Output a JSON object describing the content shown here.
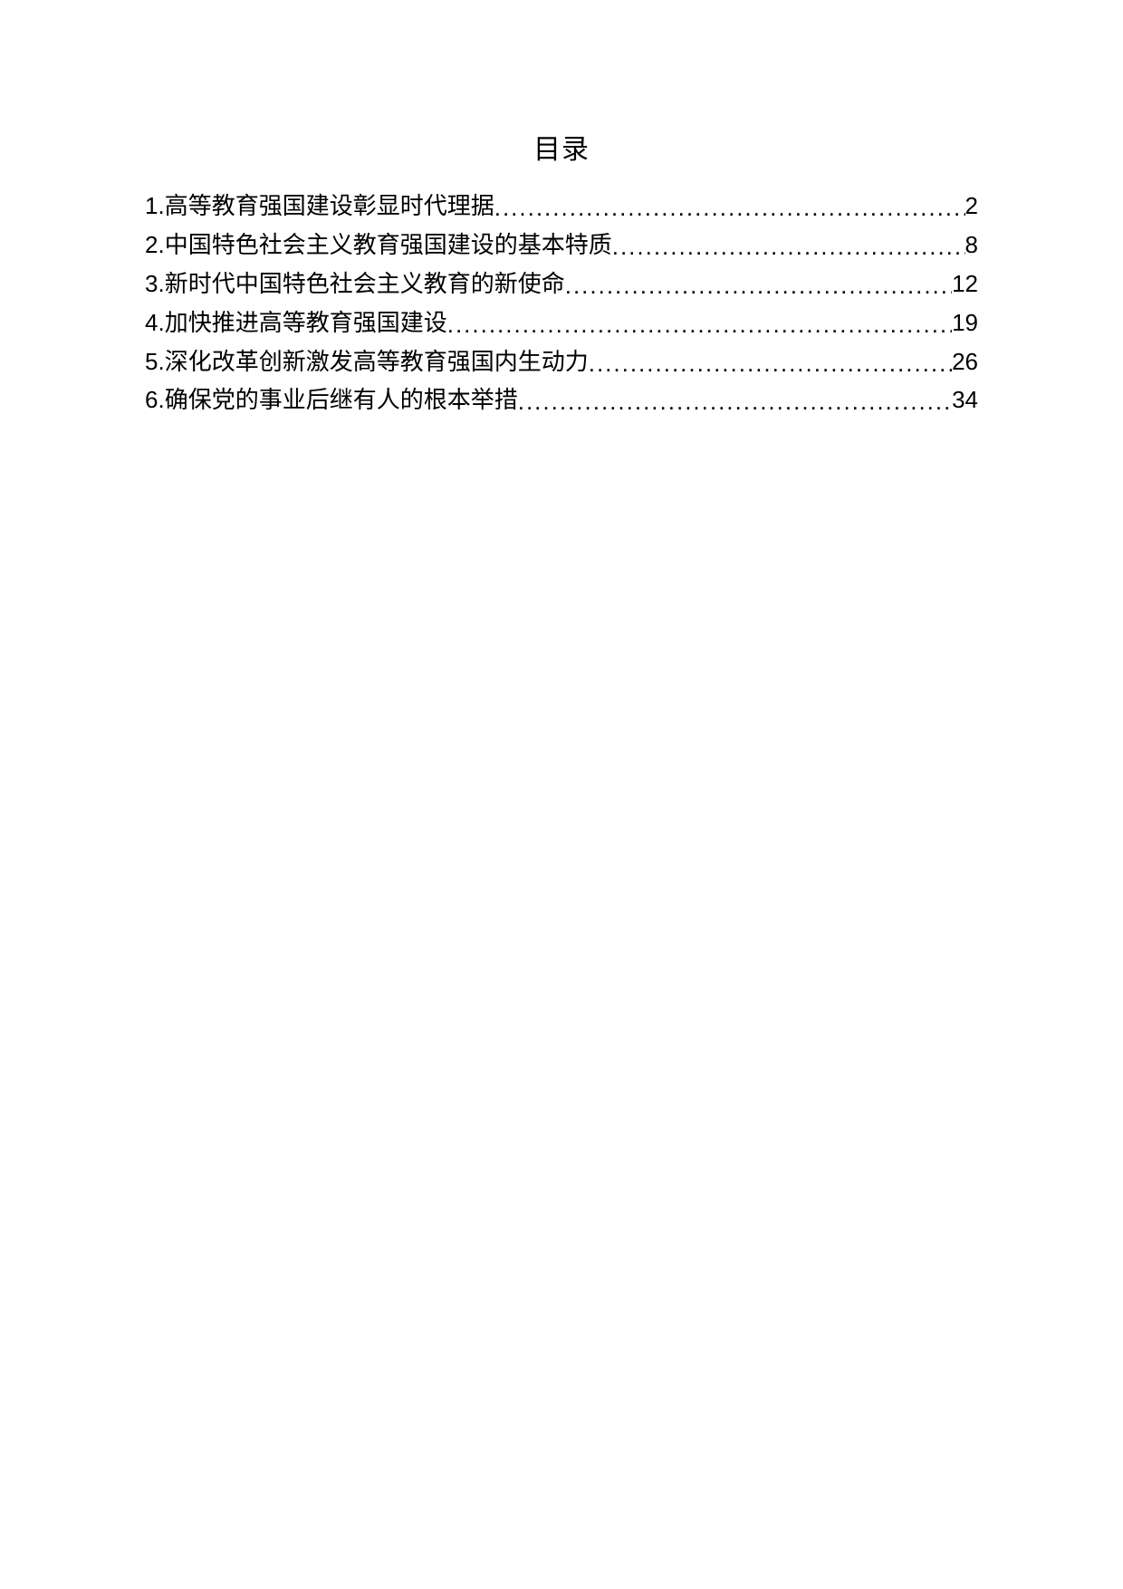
{
  "title": "目录",
  "entries": [
    {
      "number": "1",
      "text": "高等教育强国建设彰显时代理据",
      "page": "2"
    },
    {
      "number": "2",
      "text": "中国特色社会主义教育强国建设的基本特质",
      "page": "8"
    },
    {
      "number": "3",
      "text": "新时代中国特色社会主义教育的新使命",
      "page": "12"
    },
    {
      "number": "4",
      "text": "加快推进高等教育强国建设",
      "page": "19"
    },
    {
      "number": "5",
      "text": "深化改革创新激发高等教育强国内生动力",
      "page": "26"
    },
    {
      "number": "6",
      "text": "确保党的事业后继有人的根本举措",
      "page": "34"
    }
  ],
  "colors": {
    "background": "#ffffff",
    "text": "#000000"
  },
  "typography": {
    "title_fontsize": 30,
    "entry_fontsize": 26,
    "font_family": "Microsoft YaHei"
  }
}
